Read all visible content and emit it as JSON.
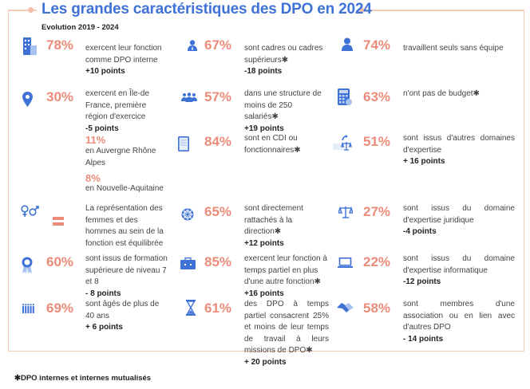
{
  "title": "Les grandes caractéristiques des DPO en 2024",
  "subtitle": "Evolution 2019 - 2024",
  "colors": {
    "accent_blue": "#3f72d6",
    "percent_salmon": "#ec8b79",
    "frame": "#f3cbb8"
  },
  "items": [
    {
      "icon": "building-icon",
      "pct": "78%",
      "text": "exercent leur fonction comme DPO interne",
      "change": "+10 points"
    },
    {
      "icon": "person-tie-icon",
      "pct": "67%",
      "text": "sont cadres ou cadres supérieurs✱",
      "change": "-18 points"
    },
    {
      "icon": "person-icon",
      "pct": "74%",
      "text": "travaillent seuls sans équipe",
      "change": ""
    },
    {
      "icon": "location-pin-icon",
      "pct": "30%",
      "text": "exercent en Île-de France, première région d'exercice",
      "change": "-5 points"
    },
    {
      "icon": "group-icon",
      "pct": "57%",
      "text": "dans une structure de moins de 250 salariés✱",
      "change": "+19 points"
    },
    {
      "icon": "calculator-icon",
      "pct": "63%",
      "text": "n'ont pas de budget✱",
      "change": ""
    },
    {
      "icon": "",
      "pct": "11%",
      "text": "en Auvergne Rhône Alpes",
      "change": ""
    },
    {
      "icon": "document-icon",
      "pct": "84%",
      "text": "sont en CDI ou fonctionnaires✱",
      "change": ""
    },
    {
      "icon": "scale-arrow-icon",
      "pct": "51%",
      "text": "sont issus d'autres domaines d'expertise",
      "change": "+ 16 points"
    },
    {
      "icon": "",
      "pct": "8%",
      "text": "en Nouvelle-Aquitaine",
      "change": ""
    },
    {
      "icon": "gender-icon",
      "pct": "",
      "text": "La représentation des femmes et des hommes au sein de la fonction est équilibrée",
      "change": ""
    },
    {
      "icon": "helm-icon",
      "pct": "65%",
      "text": "sont directement rattachés à la direction✱",
      "change": "+12 points"
    },
    {
      "icon": "scale-icon",
      "pct": "27%",
      "text": "sont issus du domaine d'expertise juridique",
      "change": "-4 points"
    },
    {
      "icon": "award-icon",
      "pct": "60%",
      "text": "sont issus de formation supérieure de niveau 7 et 8",
      "change": "- 8 points"
    },
    {
      "icon": "briefcase-icon",
      "pct": "85%",
      "text": "exercent leur fonction à temps partiel en plus d'une autre fonction✱",
      "change": "+16 points"
    },
    {
      "icon": "laptop-icon",
      "pct": "22%",
      "text": "sont issus du domaine d'expertise informatique",
      "change": "-12 points"
    },
    {
      "icon": "people-row-icon",
      "pct": "69%",
      "text": "sont âgés de plus de 40 ans",
      "change": "+ 6 points"
    },
    {
      "icon": "hourglass-icon",
      "pct": "61%",
      "text": "des DPO à temps partiel consacrent 25% et moins de leur temps de travail à leurs missions de DPO✱",
      "change": "+ 20 points"
    },
    {
      "icon": "handshake-icon",
      "pct": "58%",
      "text": "sont membres d'une association ou en lien avec d'autres DPO",
      "change": "- 14 points"
    }
  ],
  "footnote": "✱DPO internes et internes mutualisés"
}
